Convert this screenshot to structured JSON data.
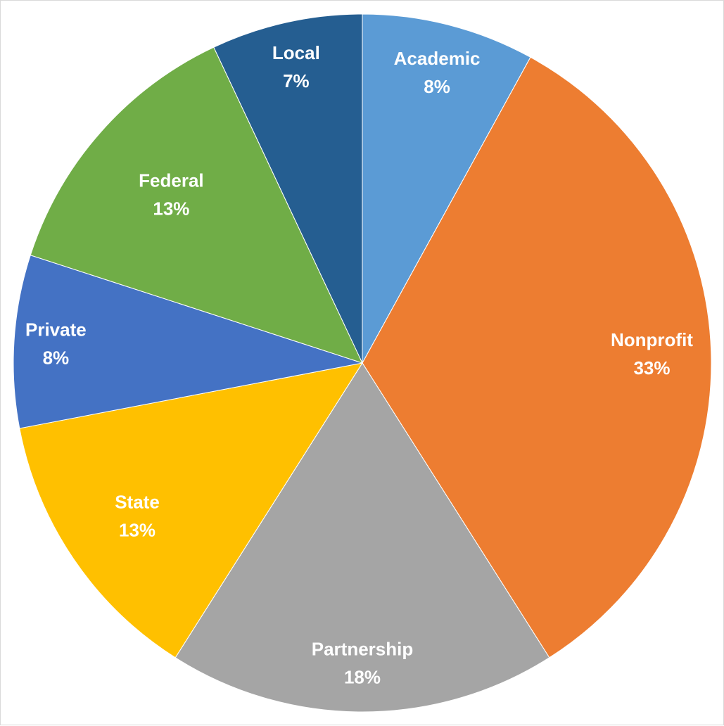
{
  "chart_data": {
    "type": "pie",
    "title": "",
    "start_angle_deg": 0,
    "direction": "clockwise",
    "slices": [
      {
        "name": "Academic",
        "value": 8,
        "label": "8%",
        "color": "#5B9BD5"
      },
      {
        "name": "Nonprofit",
        "value": 33,
        "label": "33%",
        "color": "#ED7D31"
      },
      {
        "name": "Partnership",
        "value": 18,
        "label": "18%",
        "color": "#A5A5A5"
      },
      {
        "name": "State",
        "value": 13,
        "label": "13%",
        "color": "#FFC000"
      },
      {
        "name": "Private",
        "value": 8,
        "label": "8%",
        "color": "#4472C4"
      },
      {
        "name": "Federal",
        "value": 13,
        "label": "13%",
        "color": "#70AD47"
      },
      {
        "name": "Local",
        "value": 7,
        "label": "7%",
        "color": "#255E91"
      }
    ],
    "legend": "none",
    "data_labels": "category name and percentage, inside slices"
  }
}
